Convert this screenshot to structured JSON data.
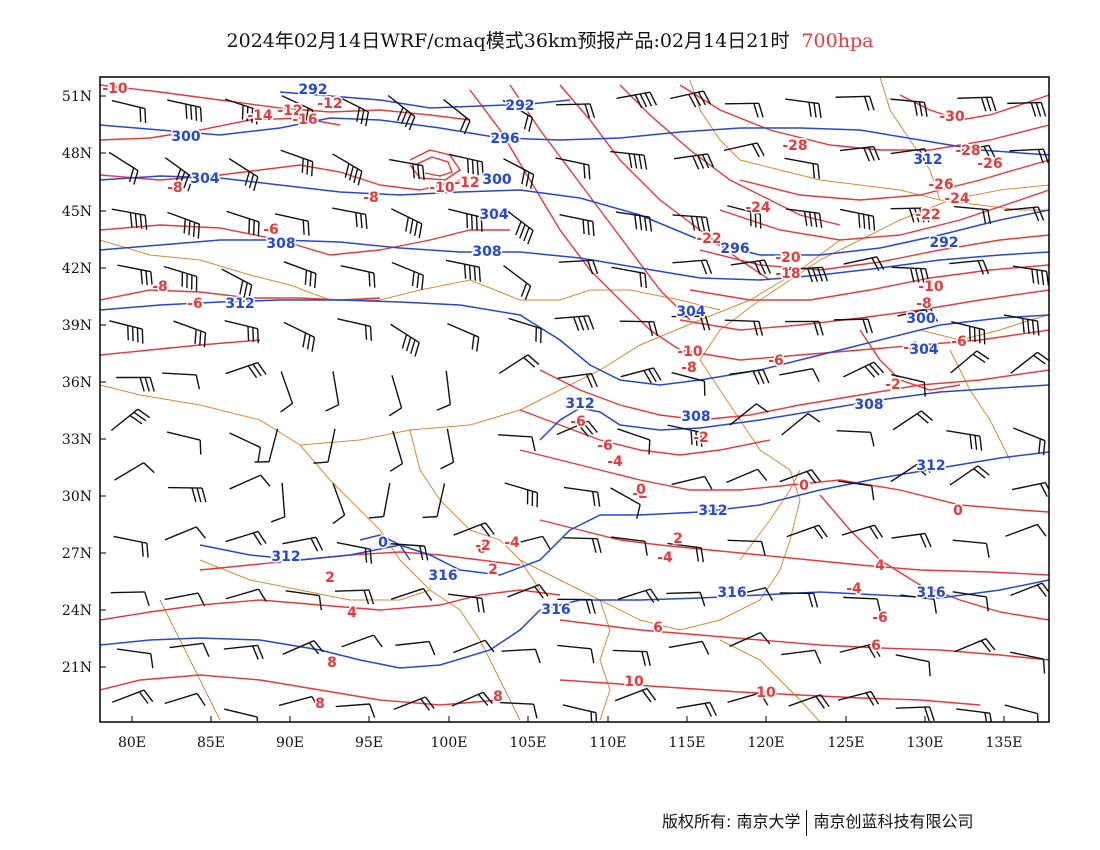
{
  "title": {
    "main": "2024年02月14日WRF/cmaq模式36km预报产品:02月14日21时",
    "level": "700hpa"
  },
  "colors": {
    "temperature": "#e8383a",
    "height": "#2447d8",
    "border": "#d98a3a",
    "wind": "#111111",
    "frame": "#000000"
  },
  "axes": {
    "lat_ticks": [
      "51N",
      "48N",
      "45N",
      "42N",
      "39N",
      "36N",
      "33N",
      "30N",
      "27N",
      "24N",
      "21N"
    ],
    "lon_ticks": [
      "80E",
      "85E",
      "90E",
      "95E",
      "100E",
      "105E",
      "110E",
      "115E",
      "120E",
      "125E",
      "130E",
      "135E"
    ]
  },
  "contour_labels": {
    "temperature": [
      "-10",
      "-12",
      "-14",
      "-12",
      "-16",
      "-10",
      "-12",
      "-8",
      "-8",
      "-6",
      "-8",
      "-6",
      "-28",
      "-30",
      "-26",
      "-28",
      "-26",
      "-24",
      "-24",
      "-22",
      "-22",
      "-20",
      "-18",
      "-10",
      "-8",
      "-6",
      "-4",
      "-10",
      "-8",
      "-6",
      "-2",
      "-6",
      "-2",
      "-6",
      "-4",
      "-2",
      "0",
      "0",
      "0",
      "0",
      "-4",
      "-2",
      "-4",
      "2",
      "2",
      "4",
      "-4",
      "2",
      "4",
      "-6",
      "6",
      "6",
      "8",
      "8",
      "8",
      "10",
      "10"
    ],
    "height": [
      "292",
      "292",
      "300",
      "296",
      "304",
      "300",
      "304",
      "308",
      "308",
      "312",
      "296",
      "304",
      "312",
      "292",
      "300",
      "304",
      "308",
      "312",
      "308",
      "312",
      "312",
      "0",
      "312",
      "316",
      "316",
      "316",
      "316"
    ]
  },
  "footer": {
    "copyright": "版权所有: 南京大学",
    "company": "南京创蓝科技有限公司"
  },
  "icons": [
    "wind-barb-icon"
  ]
}
